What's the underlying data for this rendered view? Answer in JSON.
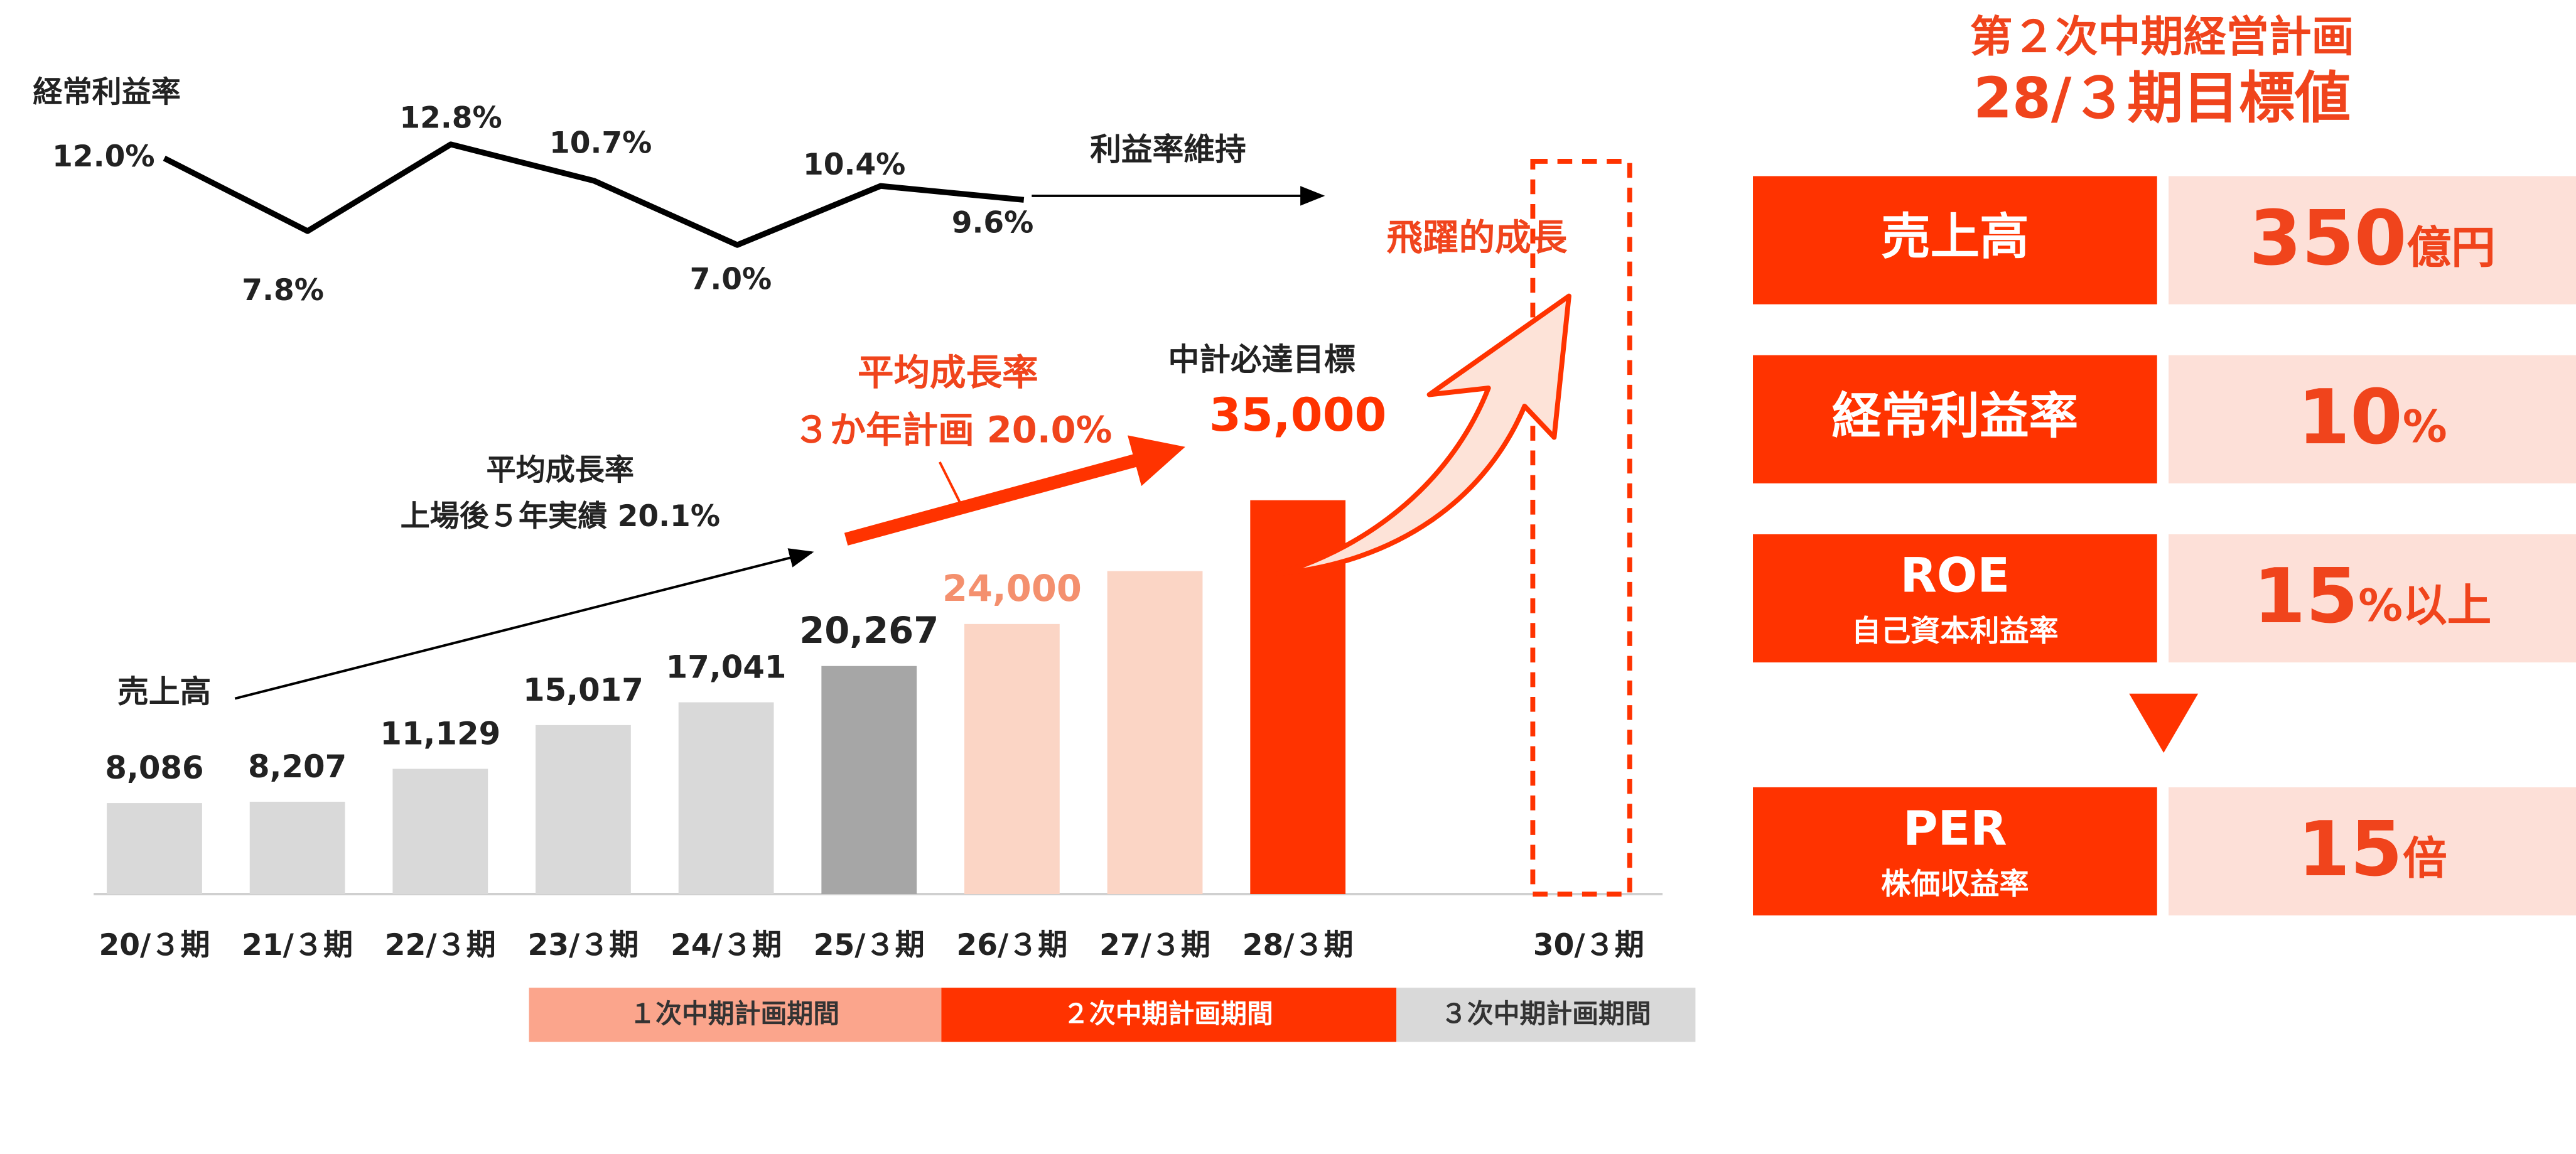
{
  "chart_data": [
    {
      "type": "bar",
      "title": "売上高",
      "categories": [
        "20/３期",
        "21/３期",
        "22/３期",
        "23/３期",
        "24/３期",
        "25/３期",
        "26/３期",
        "27/３期",
        "28/３期",
        "30/３期"
      ],
      "values": [
        8086,
        8207,
        11129,
        15017,
        17041,
        20267,
        24000,
        28700,
        35000,
        null
      ],
      "value_labels": [
        "8,086",
        "8,207",
        "11,129",
        "15,017",
        "17,041",
        "20,267",
        "24,000",
        null,
        "35,000",
        null
      ],
      "colors": [
        "#d9d9d9",
        "#d9d9d9",
        "#d9d9d9",
        "#d9d9d9",
        "#d9d9d9",
        "#a6a6a6",
        "#fbd5c5",
        "#fbd5c5",
        "#ff3300",
        null
      ],
      "ylim": [
        0,
        40000
      ]
    },
    {
      "type": "line",
      "title": "経常利益率",
      "values": [
        12.0,
        7.8,
        12.8,
        10.7,
        7.0,
        10.4,
        9.6
      ],
      "value_labels": [
        "12.0%",
        "7.8%",
        "12.8%",
        "10.7%",
        "7.0%",
        "10.4%",
        "9.6%"
      ],
      "color": "#000000",
      "ylim": [
        5,
        14
      ]
    }
  ],
  "annotations": {
    "margin_keep": "利益率維持",
    "past_growth_title": "平均成長率",
    "past_growth": "上場後５年実績 20.1%",
    "plan_growth_title": "平均成長率",
    "plan_growth": "３か年計画  20.0%",
    "target_note": "中計必達目標",
    "leap": "飛躍的成長"
  },
  "periods": [
    "１次中期計画期間",
    "２次中期計画期間",
    "３次中期計画期間"
  ],
  "panel": {
    "title": "第２次中期経営計画",
    "subtitle": "28/３期目標値",
    "targets": [
      {
        "name": "売上高",
        "value": "350",
        "unit": "億円"
      },
      {
        "name": "経常利益率",
        "value": "10",
        "unit": "%"
      },
      {
        "name": "ROE",
        "sub": "自己資本利益率",
        "value": "15",
        "unit": "%以上"
      },
      {
        "name": "PER",
        "sub": "株価収益率",
        "value": "15",
        "unit": "倍"
      }
    ]
  }
}
